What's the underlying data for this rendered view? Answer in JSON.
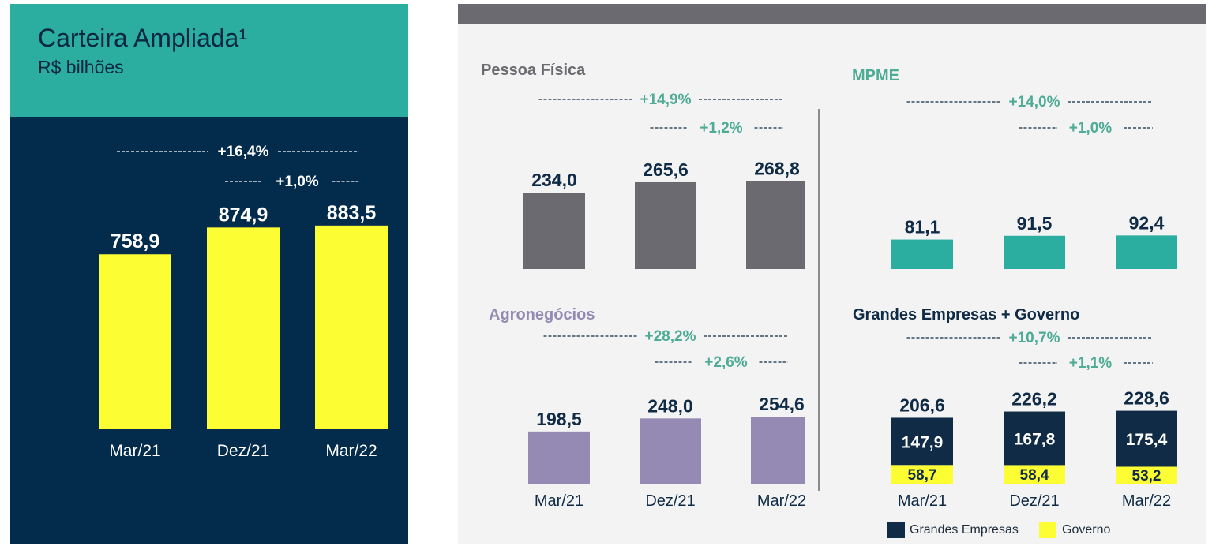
{
  "main": {
    "title": "Carteira Ampliada¹",
    "unit": "R$ bilhões"
  },
  "colors": {
    "teal": "#2bada0",
    "navy": "#032b4b",
    "yellow": "#fdfd33",
    "gray": "#6b6a70",
    "purple": "#958ab3",
    "gge_navy": "#0f2b45",
    "growth_green": "#4eab96"
  },
  "chart_data": [
    {
      "id": "carteira",
      "type": "bar",
      "title": "Carteira Ampliada¹",
      "subtitle": "R$ bilhões",
      "categories": [
        "Mar/21",
        "Dez/21",
        "Mar/22"
      ],
      "values": [
        758.9,
        874.9,
        883.5
      ],
      "value_labels": [
        "758,9",
        "874,9",
        "883,5"
      ],
      "growth": [
        {
          "label": "+16,4%",
          "from": "Mar/21",
          "to": "Mar/22"
        },
        {
          "label": "+1,0%",
          "from": "Dez/21",
          "to": "Mar/22"
        }
      ],
      "ylim": [
        0,
        900
      ]
    },
    {
      "id": "pf",
      "type": "bar",
      "title": "Pessoa Física",
      "categories": [
        "Mar/21",
        "Dez/21",
        "Mar/22"
      ],
      "values": [
        234.0,
        265.6,
        268.8
      ],
      "value_labels": [
        "234,0",
        "265,6",
        "268,8"
      ],
      "growth": [
        {
          "label": "+14,9%",
          "from": "Mar/21",
          "to": "Mar/22"
        },
        {
          "label": "+1,2%",
          "from": "Dez/21",
          "to": "Mar/22"
        }
      ],
      "ylim": [
        0,
        280
      ]
    },
    {
      "id": "mpme",
      "type": "bar",
      "title": "MPME",
      "categories": [
        "Mar/21",
        "Dez/21",
        "Mar/22"
      ],
      "values": [
        81.1,
        91.5,
        92.4
      ],
      "value_labels": [
        "81,1",
        "91,5",
        "92,4"
      ],
      "growth": [
        {
          "label": "+14,0%",
          "from": "Mar/21",
          "to": "Mar/22"
        },
        {
          "label": "+1,0%",
          "from": "Dez/21",
          "to": "Mar/22"
        }
      ],
      "ylim": [
        0,
        130
      ]
    },
    {
      "id": "agro",
      "type": "bar",
      "title": "Agronegócios",
      "categories": [
        "Mar/21",
        "Dez/21",
        "Mar/22"
      ],
      "values": [
        198.5,
        248.0,
        254.6
      ],
      "value_labels": [
        "198,5",
        "248,0",
        "254,6"
      ],
      "growth": [
        {
          "label": "+28,2%",
          "from": "Mar/21",
          "to": "Mar/22"
        },
        {
          "label": "+2,6%",
          "from": "Dez/21",
          "to": "Mar/22"
        }
      ],
      "ylim": [
        0,
        300
      ]
    },
    {
      "id": "gge",
      "type": "bar",
      "stacked": true,
      "title": "Grandes Empresas + Governo",
      "categories": [
        "Mar/21",
        "Dez/21",
        "Mar/22"
      ],
      "totals": [
        206.6,
        226.2,
        228.6
      ],
      "total_labels": [
        "206,6",
        "226,2",
        "228,6"
      ],
      "series": [
        {
          "name": "Grandes Empresas",
          "values": [
            147.9,
            167.8,
            175.4
          ],
          "value_labels": [
            "147,9",
            "167,8",
            "175,4"
          ]
        },
        {
          "name": "Governo",
          "values": [
            58.7,
            58.4,
            53.2
          ],
          "value_labels": [
            "58,7",
            "58,4",
            "53,2"
          ]
        }
      ],
      "growth": [
        {
          "label": "+10,7%",
          "from": "Mar/21",
          "to": "Mar/22"
        },
        {
          "label": "+1,1%",
          "from": "Dez/21",
          "to": "Mar/22"
        }
      ],
      "legend": [
        "Grandes Empresas",
        "Governo"
      ],
      "legend_position": "bottom-right",
      "ylim": [
        0,
        230
      ]
    }
  ]
}
